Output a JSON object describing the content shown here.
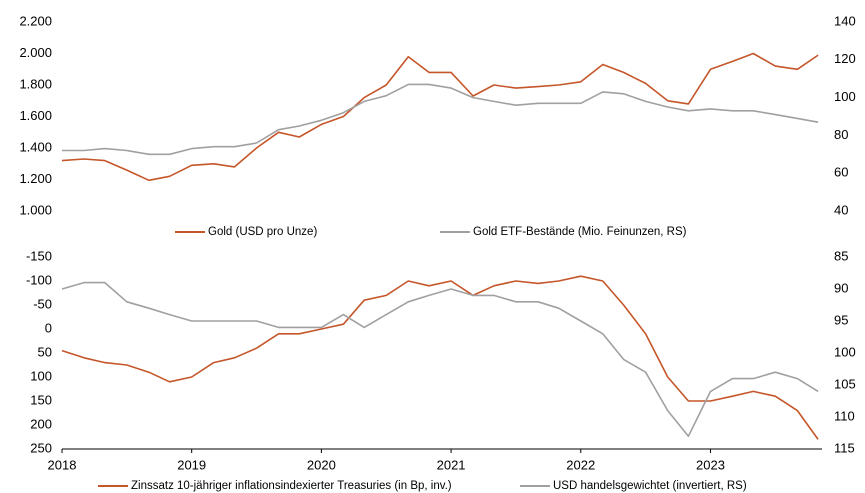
{
  "chart_data": [
    {
      "type": "line",
      "x": [
        2018,
        2018.17,
        2018.33,
        2018.5,
        2018.67,
        2018.83,
        2019,
        2019.17,
        2019.33,
        2019.5,
        2019.67,
        2019.83,
        2020,
        2020.17,
        2020.33,
        2020.5,
        2020.67,
        2020.83,
        2021,
        2021.17,
        2021.33,
        2021.5,
        2021.67,
        2021.83,
        2022,
        2022.17,
        2022.33,
        2022.5,
        2022.67,
        2022.83,
        2023,
        2023.17,
        2023.33,
        2023.5,
        2023.67,
        2023.83
      ],
      "xlim": [
        2018,
        2023.86
      ],
      "ylim": [
        1000,
        2200
      ],
      "yticks": [
        {
          "value": 1000,
          "label": "1.000"
        },
        {
          "value": 1200,
          "label": "1.200"
        },
        {
          "value": 1400,
          "label": "1.400"
        },
        {
          "value": 1600,
          "label": "1.600"
        },
        {
          "value": 1800,
          "label": "1.800"
        },
        {
          "value": 2000,
          "label": "2.000"
        },
        {
          "value": 2200,
          "label": "2.200"
        }
      ],
      "y2lim": [
        40,
        140
      ],
      "y2ticks": [
        40,
        60,
        80,
        100,
        120,
        140
      ],
      "legend": "bottom",
      "series": [
        {
          "name": "Gold (USD pro Unze)",
          "color": "#c5562a",
          "values": [
            1320,
            1330,
            1320,
            1260,
            1195,
            1220,
            1290,
            1300,
            1280,
            1400,
            1500,
            1470,
            1550,
            1600,
            1720,
            1800,
            1980,
            1880,
            1880,
            1730,
            1800,
            1780,
            1790,
            1800,
            1820,
            1930,
            1880,
            1810,
            1700,
            1680,
            1900,
            1950,
            2000,
            1920,
            1900,
            1990
          ]
        },
        {
          "name": "Gold ETF-Bestände (Mio. Feinunzen, RS)",
          "color": "#a0a0a0",
          "axis": "y2",
          "values": [
            72,
            72,
            73,
            72,
            70,
            70,
            73,
            74,
            74,
            76,
            83,
            85,
            88,
            92,
            98,
            101,
            107,
            107,
            105,
            100,
            98,
            96,
            97,
            97,
            97,
            103,
            102,
            98,
            95,
            93,
            94,
            93,
            93,
            91,
            89,
            87
          ]
        }
      ]
    },
    {
      "type": "line",
      "x": [
        2018,
        2018.17,
        2018.33,
        2018.5,
        2018.67,
        2018.83,
        2019,
        2019.17,
        2019.33,
        2019.5,
        2019.67,
        2019.83,
        2020,
        2020.17,
        2020.33,
        2020.5,
        2020.67,
        2020.83,
        2021,
        2021.17,
        2021.33,
        2021.5,
        2021.67,
        2021.83,
        2022,
        2022.17,
        2022.33,
        2022.5,
        2022.67,
        2022.83,
        2023,
        2023.17,
        2023.33,
        2023.5,
        2023.67,
        2023.83
      ],
      "xlim": [
        2018,
        2023.86
      ],
      "xticks": [
        2018,
        2019,
        2020,
        2021,
        2022,
        2023
      ],
      "ylim": [
        -150,
        250
      ],
      "y_inverted": true,
      "yticks": [
        -150,
        -100,
        -50,
        0,
        50,
        100,
        150,
        200,
        250
      ],
      "y2lim": [
        85,
        115
      ],
      "y2_inverted": true,
      "y2ticks": [
        85,
        90,
        95,
        100,
        105,
        110,
        115
      ],
      "legend": "bottom",
      "series": [
        {
          "name": "Zinssatz 10-jähriger inflationsindexierter Treasuries (in Bp, inv.)",
          "color": "#c5562a",
          "values": [
            45,
            60,
            70,
            75,
            90,
            110,
            100,
            70,
            60,
            40,
            10,
            10,
            0,
            -10,
            -60,
            -70,
            -100,
            -90,
            -100,
            -70,
            -90,
            -100,
            -95,
            -100,
            -110,
            -100,
            -50,
            10,
            100,
            150,
            150,
            140,
            130,
            140,
            170,
            230
          ]
        },
        {
          "name": "USD handelsgewichtet (invertiert, RS)",
          "color": "#a0a0a0",
          "axis": "y2",
          "values": [
            90,
            89,
            89,
            92,
            93,
            94,
            95,
            95,
            95,
            95,
            96,
            96,
            96,
            94,
            96,
            94,
            92,
            91,
            90,
            91,
            91,
            92,
            92,
            93,
            95,
            97,
            101,
            103,
            109,
            113,
            106,
            104,
            104,
            103,
            104,
            106
          ]
        }
      ]
    }
  ]
}
